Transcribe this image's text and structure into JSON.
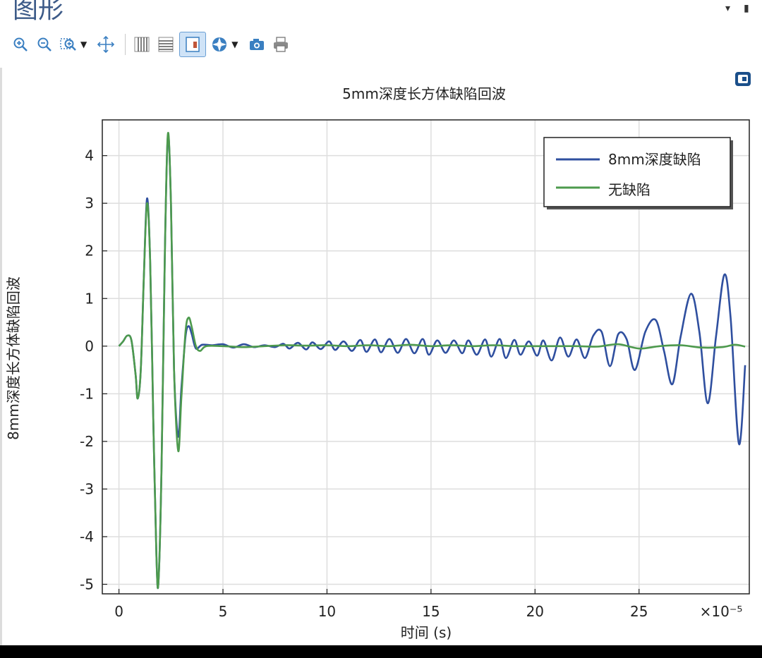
{
  "panel": {
    "title": "图形",
    "controls": [
      "▾",
      "▮"
    ]
  },
  "toolbar": {
    "buttons": [
      {
        "name": "zoom-in-icon"
      },
      {
        "name": "zoom-out-icon"
      },
      {
        "name": "zoom-box-icon",
        "dropdown": true
      },
      {
        "name": "zoom-extents-icon"
      },
      {
        "name": "grid-x-icon"
      },
      {
        "name": "grid-y-icon"
      },
      {
        "name": "legend-toggle-icon",
        "active": true
      },
      {
        "name": "color-scene-icon",
        "dropdown": true
      },
      {
        "name": "camera-icon"
      },
      {
        "name": "print-icon"
      }
    ],
    "colors": {
      "icon": "#3a7fc1",
      "active_bg": "#cfe3f7"
    }
  },
  "chart_data": {
    "type": "line",
    "title": "5mm深度长方体缺陷回波",
    "xlabel": "时间 (s)",
    "ylabel": "8mm深度长方体缺陷回波",
    "x_multiplier": "×10⁻⁵",
    "xlim": [
      -0.8,
      30.3
    ],
    "ylim": [
      -5.2,
      4.75
    ],
    "xticks": [
      0,
      5,
      10,
      15,
      20,
      25
    ],
    "yticks": [
      -5,
      -4,
      -3,
      -2,
      -1,
      0,
      1,
      2,
      3,
      4
    ],
    "grid": true,
    "legend_position": "top-right",
    "series": [
      {
        "name": "8mm深度缺陷",
        "color": "#2f4f9f",
        "points": [
          [
            0,
            0
          ],
          [
            0.2,
            0.1
          ],
          [
            0.4,
            0.22
          ],
          [
            0.6,
            0.12
          ],
          [
            0.8,
            -0.6
          ],
          [
            0.9,
            -1.1
          ],
          [
            1.05,
            -0.5
          ],
          [
            1.2,
            1.5
          ],
          [
            1.35,
            3.1
          ],
          [
            1.5,
            1.8
          ],
          [
            1.65,
            -1.5
          ],
          [
            1.8,
            -4.4
          ],
          [
            1.9,
            -4.95
          ],
          [
            2.05,
            -2.5
          ],
          [
            2.2,
            1.8
          ],
          [
            2.35,
            4.4
          ],
          [
            2.5,
            3.0
          ],
          [
            2.65,
            -0.5
          ],
          [
            2.85,
            -1.9
          ],
          [
            3.0,
            -0.9
          ],
          [
            3.2,
            0.2
          ],
          [
            3.35,
            0.42
          ],
          [
            3.5,
            0.25
          ],
          [
            3.7,
            -0.05
          ],
          [
            4.0,
            0.03
          ],
          [
            4.5,
            0.02
          ],
          [
            5.0,
            0.04
          ],
          [
            5.5,
            -0.03
          ],
          [
            6,
            0.04
          ],
          [
            6.5,
            -0.02
          ],
          [
            7,
            0.02
          ],
          [
            7.5,
            -0.02
          ],
          [
            7.9,
            0.05
          ],
          [
            8.2,
            -0.05
          ],
          [
            8.6,
            0.07
          ],
          [
            9.0,
            -0.07
          ],
          [
            9.3,
            0.08
          ],
          [
            9.7,
            -0.06
          ],
          [
            10.1,
            0.1
          ],
          [
            10.4,
            -0.08
          ],
          [
            10.8,
            0.1
          ],
          [
            11.2,
            -0.1
          ],
          [
            11.6,
            0.13
          ],
          [
            11.9,
            -0.12
          ],
          [
            12.3,
            0.14
          ],
          [
            12.6,
            -0.13
          ],
          [
            13.0,
            0.15
          ],
          [
            13.4,
            -0.14
          ],
          [
            13.8,
            0.15
          ],
          [
            14.2,
            -0.15
          ],
          [
            14.6,
            0.15
          ],
          [
            14.9,
            -0.18
          ],
          [
            15.3,
            0.12
          ],
          [
            15.7,
            -0.14
          ],
          [
            16.1,
            0.12
          ],
          [
            16.5,
            -0.15
          ],
          [
            16.8,
            0.12
          ],
          [
            17.2,
            -0.18
          ],
          [
            17.6,
            0.14
          ],
          [
            17.9,
            -0.22
          ],
          [
            18.3,
            0.15
          ],
          [
            18.6,
            -0.25
          ],
          [
            19.0,
            0.13
          ],
          [
            19.3,
            -0.18
          ],
          [
            19.7,
            0.1
          ],
          [
            20.1,
            -0.2
          ],
          [
            20.4,
            0.12
          ],
          [
            20.8,
            -0.3
          ],
          [
            21.2,
            0.18
          ],
          [
            21.6,
            -0.22
          ],
          [
            22.0,
            0.14
          ],
          [
            22.4,
            -0.25
          ],
          [
            22.8,
            0.22
          ],
          [
            23.2,
            0.3
          ],
          [
            23.6,
            -0.42
          ],
          [
            24.0,
            0.25
          ],
          [
            24.4,
            0.15
          ],
          [
            24.8,
            -0.5
          ],
          [
            25.3,
            0.3
          ],
          [
            25.8,
            0.55
          ],
          [
            26.2,
            -0.1
          ],
          [
            26.6,
            -0.8
          ],
          [
            27.0,
            0.2
          ],
          [
            27.5,
            1.1
          ],
          [
            27.9,
            0.3
          ],
          [
            28.3,
            -1.2
          ],
          [
            28.7,
            0.2
          ],
          [
            29.1,
            1.5
          ],
          [
            29.4,
            0.6
          ],
          [
            29.8,
            -2.05
          ],
          [
            30.1,
            -0.4
          ]
        ]
      },
      {
        "name": "无缺陷",
        "color": "#4d9a4d",
        "points": [
          [
            0,
            0
          ],
          [
            0.2,
            0.1
          ],
          [
            0.4,
            0.22
          ],
          [
            0.6,
            0.12
          ],
          [
            0.8,
            -0.6
          ],
          [
            0.9,
            -1.1
          ],
          [
            1.05,
            -0.5
          ],
          [
            1.2,
            1.5
          ],
          [
            1.35,
            3.0
          ],
          [
            1.5,
            1.8
          ],
          [
            1.65,
            -1.5
          ],
          [
            1.8,
            -4.4
          ],
          [
            1.9,
            -4.95
          ],
          [
            2.05,
            -2.5
          ],
          [
            2.2,
            1.8
          ],
          [
            2.35,
            4.45
          ],
          [
            2.5,
            3.0
          ],
          [
            2.65,
            -0.5
          ],
          [
            2.85,
            -2.2
          ],
          [
            3.0,
            -1.1
          ],
          [
            3.2,
            0.3
          ],
          [
            3.35,
            0.6
          ],
          [
            3.5,
            0.4
          ],
          [
            3.7,
            0.0
          ],
          [
            3.9,
            -0.1
          ],
          [
            4.2,
            0.0
          ],
          [
            5,
            0.0
          ],
          [
            6,
            -0.02
          ],
          [
            7,
            0.0
          ],
          [
            8,
            0.02
          ],
          [
            9,
            0.01
          ],
          [
            10,
            0.02
          ],
          [
            11,
            0.0
          ],
          [
            12,
            0.02
          ],
          [
            13,
            0.0
          ],
          [
            14,
            0.03
          ],
          [
            15,
            0.0
          ],
          [
            16,
            0.02
          ],
          [
            17,
            0.0
          ],
          [
            18,
            0.02
          ],
          [
            19,
            0.0
          ],
          [
            20,
            0.0
          ],
          [
            21,
            0.0
          ],
          [
            22,
            0.0
          ],
          [
            23,
            -0.01
          ],
          [
            24,
            0.04
          ],
          [
            25,
            -0.05
          ],
          [
            26,
            0.0
          ],
          [
            27,
            0.02
          ],
          [
            28,
            -0.03
          ],
          [
            29,
            -0.02
          ],
          [
            29.6,
            0.03
          ],
          [
            30.1,
            -0.01
          ]
        ]
      }
    ]
  }
}
